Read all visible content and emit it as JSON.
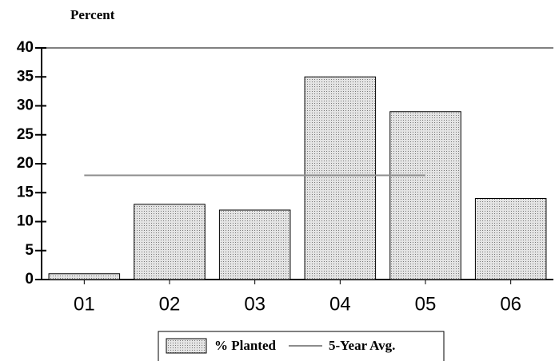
{
  "chart_data": {
    "type": "bar",
    "y_label": "Percent",
    "categories": [
      "01",
      "02",
      "03",
      "04",
      "05",
      "06"
    ],
    "series": [
      {
        "name": "% Planted",
        "type": "bar",
        "color": "#c4c4c4",
        "values": [
          1,
          13,
          12,
          35,
          29,
          14
        ]
      },
      {
        "name": "5-Year Avg.",
        "type": "line",
        "color": "#8c8c8c",
        "values": [
          18,
          18,
          18,
          18,
          18,
          null
        ]
      }
    ],
    "ylim": [
      0,
      40
    ],
    "yticks": [
      0,
      5,
      10,
      15,
      20,
      25,
      30,
      35,
      40
    ]
  }
}
